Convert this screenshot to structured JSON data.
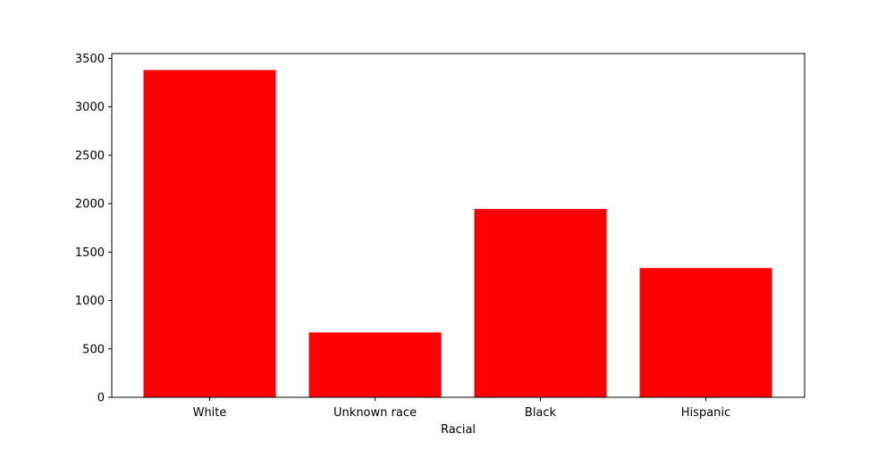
{
  "chart_data": {
    "type": "bar",
    "categories": [
      "White",
      "Unknown race",
      "Black",
      "Hispanic"
    ],
    "values": [
      3380,
      670,
      1945,
      1335
    ],
    "xlabel": "Racial",
    "ylabel": "",
    "ylim": [
      0,
      3550
    ],
    "yticks": [
      0,
      500,
      1000,
      1500,
      2000,
      2500,
      3000,
      3500
    ],
    "grid": false,
    "bar_color": "#ff0000"
  }
}
